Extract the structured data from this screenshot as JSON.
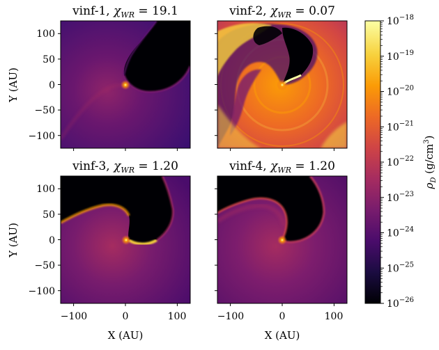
{
  "panels": [
    {
      "name": "vinf-1",
      "chi": "19.1",
      "prefix": "vinf-1, ",
      "eq": " = 19.1"
    },
    {
      "name": "vinf-2",
      "chi": "0.07",
      "prefix": "vinf-2, ",
      "eq": " = 0.07"
    },
    {
      "name": "vinf-3",
      "chi": "1.20",
      "prefix": "vinf-3, ",
      "eq": " = 1.20"
    },
    {
      "name": "vinf-4",
      "chi": "1.20",
      "prefix": "vinf-4, ",
      "eq": " = 1.20"
    }
  ],
  "chi_symbol": "χ",
  "chi_subscript": "WR",
  "axes": {
    "xlabel": "X (AU)",
    "ylabel": "Y (AU)",
    "xticks": [
      "−100",
      "0",
      "100"
    ],
    "yticks": [
      "100",
      "50",
      "0",
      "−50",
      "−100"
    ],
    "xlim": [
      -125,
      125
    ],
    "ylim": [
      -125,
      125
    ]
  },
  "colorbar": {
    "label_symbol": "ρ",
    "label_subscript": "D",
    "label_units": "(g/cm",
    "label_units_sup": "3",
    "label_close": ")",
    "tick_base": "10",
    "tick_exponents": [
      "−18",
      "−19",
      "−20",
      "−21",
      "−22",
      "−23",
      "−24",
      "−25",
      "−26"
    ],
    "colormap": "inferno",
    "scale": "log",
    "colors": [
      "#000004",
      "#1b0c41",
      "#4a0c6b",
      "#781c6d",
      "#a52c60",
      "#cf4446",
      "#ed6925",
      "#fb9b06",
      "#f7d13d",
      "#fcffa4"
    ]
  }
}
